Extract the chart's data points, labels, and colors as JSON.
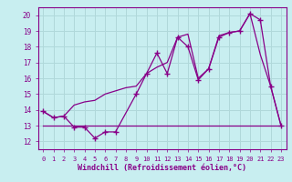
{
  "background_color": "#c8eef0",
  "grid_color": "#b0d8da",
  "line_color": "#880088",
  "xlabel": "Windchill (Refroidissement éolien,°C)",
  "ylabel_ticks": [
    12,
    13,
    14,
    15,
    16,
    17,
    18,
    19,
    20
  ],
  "xlim": [
    -0.5,
    23.5
  ],
  "ylim": [
    11.5,
    20.5
  ],
  "series1_x": [
    0,
    1,
    2,
    3,
    4,
    5,
    6,
    7,
    9,
    10,
    11,
    12,
    13,
    14,
    15,
    16,
    17,
    18,
    19,
    20,
    21,
    22,
    23
  ],
  "series1_y": [
    13.9,
    13.5,
    13.6,
    12.9,
    12.9,
    12.2,
    12.6,
    12.6,
    15.0,
    16.3,
    17.6,
    16.3,
    18.6,
    18.0,
    15.9,
    16.6,
    18.6,
    18.9,
    19.0,
    20.1,
    19.7,
    15.5,
    13.0
  ],
  "series2_x": [
    0,
    1,
    2,
    3,
    4,
    5,
    6,
    7,
    8,
    9,
    10,
    11,
    12,
    13,
    14,
    15,
    16,
    17,
    18,
    19,
    20,
    21,
    22,
    23
  ],
  "series2_y": [
    13.9,
    13.5,
    13.6,
    14.3,
    14.5,
    14.6,
    15.0,
    15.2,
    15.4,
    15.5,
    16.3,
    16.7,
    17.0,
    18.6,
    18.8,
    16.0,
    16.6,
    18.7,
    18.9,
    19.0,
    20.1,
    17.5,
    15.5,
    13.0
  ],
  "series3_x": [
    0,
    1,
    2,
    3,
    4,
    5,
    6,
    7,
    8,
    9,
    10,
    11,
    12,
    13,
    14,
    15,
    16,
    17,
    18,
    19,
    20,
    21,
    22,
    23
  ],
  "series3_y": [
    13.0,
    13.0,
    13.0,
    13.0,
    13.0,
    13.0,
    13.0,
    13.0,
    13.0,
    13.0,
    13.0,
    13.0,
    13.0,
    13.0,
    13.0,
    13.0,
    13.0,
    13.0,
    13.0,
    13.0,
    13.0,
    13.0,
    13.0,
    13.0
  ],
  "xtick_labels": [
    "0",
    "1",
    "2",
    "3",
    "4",
    "5",
    "6",
    "7",
    "8",
    "9",
    "10",
    "11",
    "12",
    "13",
    "14",
    "15",
    "16",
    "17",
    "18",
    "19",
    "20",
    "21",
    "22",
    "23"
  ],
  "font_color": "#880088"
}
